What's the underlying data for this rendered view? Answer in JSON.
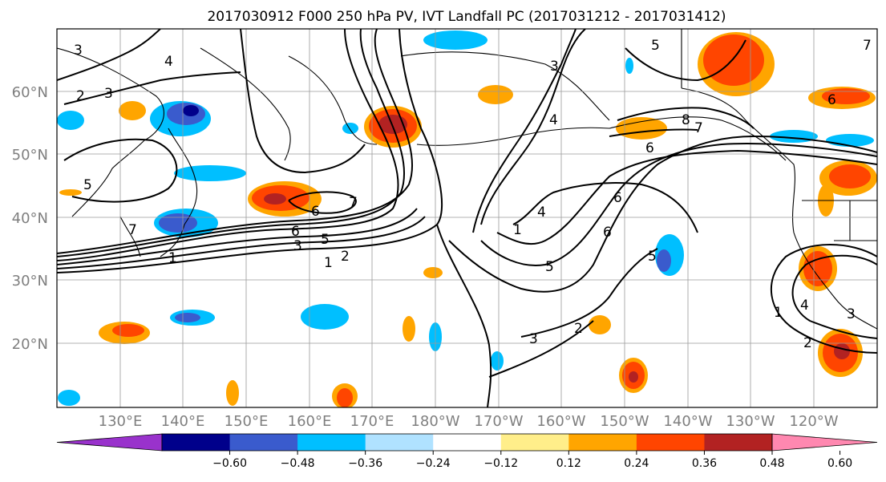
{
  "title": "2017030912 F000 250 hPa PV, IVT Landfall PC (2017031212 - 2017031412)",
  "map": {
    "lat_labels": [
      "60°N",
      "50°N",
      "40°N",
      "30°N",
      "20°N"
    ],
    "lon_labels": [
      "130°E",
      "140°E",
      "150°E",
      "160°E",
      "170°E",
      "180°W",
      "170°W",
      "160°W",
      "150°W",
      "140°W",
      "130°W",
      "120°W"
    ],
    "contour_labels": [
      "3",
      "4",
      "2",
      "3",
      "4",
      "5",
      "3",
      "5",
      "7",
      "6",
      "8",
      "7",
      "6",
      "5",
      "6",
      "6",
      "7",
      "6",
      "5",
      "3",
      "1",
      "2",
      "4",
      "1",
      "6",
      "7",
      "5",
      "4",
      "1",
      "3",
      "3",
      "2",
      "1",
      "2"
    ]
  },
  "colorbar": {
    "ticks": [
      "−0.60",
      "−0.48",
      "−0.36",
      "−0.24",
      "−0.12",
      "0.12",
      "0.24",
      "0.36",
      "0.48",
      "0.60"
    ],
    "colors": [
      "#9932cc",
      "#00008b",
      "#3a5bcd",
      "#00bfff",
      "#b0e2ff",
      "#ffffff",
      "#ffee8a",
      "#ffa500",
      "#ff4500",
      "#b22222",
      "#ff88b0"
    ]
  }
}
